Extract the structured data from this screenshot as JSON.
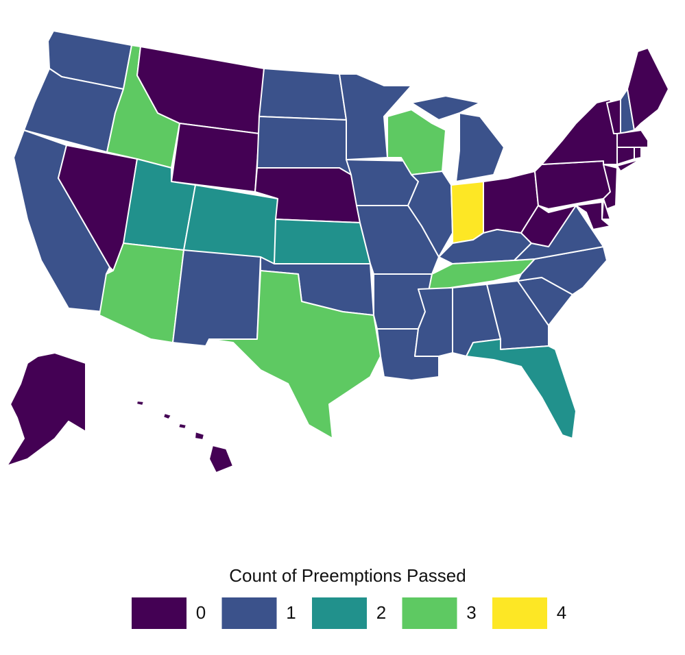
{
  "map_data": {
    "type": "choropleth",
    "values": [
      1,
      1,
      1,
      0,
      3,
      0,
      0,
      2,
      2,
      3,
      1,
      1,
      1,
      0,
      2,
      1,
      3,
      1,
      1,
      1,
      1,
      1,
      3,
      1,
      1,
      4,
      0,
      1,
      3,
      1,
      1,
      1,
      2,
      1,
      1,
      1,
      0,
      0,
      0,
      0,
      1,
      0,
      0,
      0,
      0,
      0,
      0,
      0,
      0,
      0
    ],
    "legend": {
      "title": "Count of Preemptions Passed",
      "items": [
        0,
        1,
        2,
        3,
        4
      ],
      "colors": [
        "#440154",
        "#3b528b",
        "#21918c",
        "#5ec962",
        "#fde725"
      ]
    }
  }
}
